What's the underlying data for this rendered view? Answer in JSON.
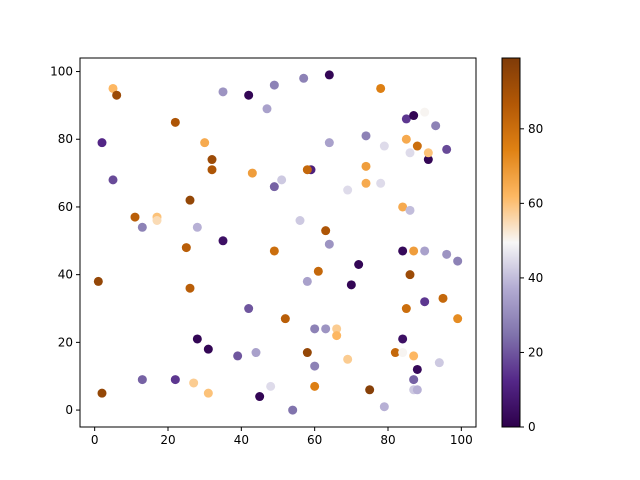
{
  "chart_data": {
    "type": "scatter",
    "title": "",
    "xlabel": "",
    "ylabel": "",
    "xlim": [
      -4,
      104
    ],
    "ylim": [
      -5,
      104
    ],
    "xticks": [
      "0",
      "20",
      "40",
      "60",
      "80",
      "100"
    ],
    "yticks": [
      "0",
      "20",
      "40",
      "60",
      "80",
      "100"
    ],
    "colormap": "PuOr_r",
    "colorbar": {
      "range": [
        0,
        99
      ],
      "ticks": [
        "0",
        "20",
        "40",
        "60",
        "80"
      ]
    },
    "grid": false,
    "points": [
      {
        "x": 5,
        "y": 95,
        "c": 62
      },
      {
        "x": 6,
        "y": 93,
        "c": 92
      },
      {
        "x": 35,
        "y": 94,
        "c": 32
      },
      {
        "x": 42,
        "y": 93,
        "c": 2
      },
      {
        "x": 49,
        "y": 96,
        "c": 28
      },
      {
        "x": 57,
        "y": 98,
        "c": 28
      },
      {
        "x": 64,
        "y": 99,
        "c": 2
      },
      {
        "x": 78,
        "y": 95,
        "c": 75
      },
      {
        "x": 47,
        "y": 89,
        "c": 35
      },
      {
        "x": 22,
        "y": 85,
        "c": 88
      },
      {
        "x": 30,
        "y": 79,
        "c": 65
      },
      {
        "x": 2,
        "y": 79,
        "c": 12
      },
      {
        "x": 32,
        "y": 74,
        "c": 92
      },
      {
        "x": 32,
        "y": 71,
        "c": 88
      },
      {
        "x": 43,
        "y": 70,
        "c": 68
      },
      {
        "x": 59,
        "y": 71,
        "c": 10
      },
      {
        "x": 58,
        "y": 71,
        "c": 82
      },
      {
        "x": 5,
        "y": 68,
        "c": 18
      },
      {
        "x": 49,
        "y": 66,
        "c": 22
      },
      {
        "x": 51,
        "y": 68,
        "c": 42
      },
      {
        "x": 64,
        "y": 79,
        "c": 35
      },
      {
        "x": 69,
        "y": 65,
        "c": 45
      },
      {
        "x": 74,
        "y": 81,
        "c": 28
      },
      {
        "x": 74,
        "y": 72,
        "c": 68
      },
      {
        "x": 74,
        "y": 67,
        "c": 65
      },
      {
        "x": 78,
        "y": 67,
        "c": 45
      },
      {
        "x": 79,
        "y": 78,
        "c": 45
      },
      {
        "x": 85,
        "y": 86,
        "c": 15
      },
      {
        "x": 87,
        "y": 87,
        "c": 2
      },
      {
        "x": 90,
        "y": 88,
        "c": 50
      },
      {
        "x": 93,
        "y": 84,
        "c": 28
      },
      {
        "x": 85,
        "y": 80,
        "c": 65
      },
      {
        "x": 86,
        "y": 76,
        "c": 45
      },
      {
        "x": 88,
        "y": 78,
        "c": 80
      },
      {
        "x": 91,
        "y": 74,
        "c": 2
      },
      {
        "x": 91,
        "y": 76,
        "c": 60
      },
      {
        "x": 96,
        "y": 77,
        "c": 18
      },
      {
        "x": 26,
        "y": 62,
        "c": 94
      },
      {
        "x": 11,
        "y": 57,
        "c": 85
      },
      {
        "x": 13,
        "y": 54,
        "c": 28
      },
      {
        "x": 17,
        "y": 57,
        "c": 60
      },
      {
        "x": 17,
        "y": 56,
        "c": 55
      },
      {
        "x": 28,
        "y": 54,
        "c": 38
      },
      {
        "x": 35,
        "y": 50,
        "c": 5
      },
      {
        "x": 25,
        "y": 48,
        "c": 85
      },
      {
        "x": 49,
        "y": 47,
        "c": 80
      },
      {
        "x": 56,
        "y": 56,
        "c": 42
      },
      {
        "x": 63,
        "y": 53,
        "c": 88
      },
      {
        "x": 64,
        "y": 49,
        "c": 32
      },
      {
        "x": 84,
        "y": 60,
        "c": 65
      },
      {
        "x": 86,
        "y": 59,
        "c": 40
      },
      {
        "x": 84,
        "y": 47,
        "c": 3
      },
      {
        "x": 87,
        "y": 47,
        "c": 68
      },
      {
        "x": 90,
        "y": 47,
        "c": 35
      },
      {
        "x": 96,
        "y": 46,
        "c": 32
      },
      {
        "x": 99,
        "y": 44,
        "c": 28
      },
      {
        "x": 1,
        "y": 38,
        "c": 94
      },
      {
        "x": 26,
        "y": 36,
        "c": 85
      },
      {
        "x": 58,
        "y": 38,
        "c": 35
      },
      {
        "x": 61,
        "y": 41,
        "c": 82
      },
      {
        "x": 72,
        "y": 43,
        "c": 2
      },
      {
        "x": 70,
        "y": 37,
        "c": 2
      },
      {
        "x": 86,
        "y": 40,
        "c": 92
      },
      {
        "x": 85,
        "y": 30,
        "c": 80
      },
      {
        "x": 90,
        "y": 32,
        "c": 15
      },
      {
        "x": 95,
        "y": 33,
        "c": 82
      },
      {
        "x": 99,
        "y": 27,
        "c": 72
      },
      {
        "x": 42,
        "y": 30,
        "c": 20
      },
      {
        "x": 52,
        "y": 27,
        "c": 85
      },
      {
        "x": 60,
        "y": 24,
        "c": 28
      },
      {
        "x": 63,
        "y": 24,
        "c": 32
      },
      {
        "x": 66,
        "y": 24,
        "c": 58
      },
      {
        "x": 66,
        "y": 22,
        "c": 62
      },
      {
        "x": 28,
        "y": 21,
        "c": 2
      },
      {
        "x": 31,
        "y": 18,
        "c": 2
      },
      {
        "x": 39,
        "y": 16,
        "c": 20
      },
      {
        "x": 44,
        "y": 17,
        "c": 35
      },
      {
        "x": 58,
        "y": 17,
        "c": 94
      },
      {
        "x": 60,
        "y": 13,
        "c": 28
      },
      {
        "x": 69,
        "y": 15,
        "c": 58
      },
      {
        "x": 82,
        "y": 17,
        "c": 82
      },
      {
        "x": 84,
        "y": 21,
        "c": 5
      },
      {
        "x": 84,
        "y": 17,
        "c": 50
      },
      {
        "x": 87,
        "y": 16,
        "c": 62
      },
      {
        "x": 88,
        "y": 12,
        "c": 3
      },
      {
        "x": 87,
        "y": 9,
        "c": 22
      },
      {
        "x": 94,
        "y": 14,
        "c": 42
      },
      {
        "x": 87,
        "y": 6,
        "c": 42
      },
      {
        "x": 88,
        "y": 6,
        "c": 38
      },
      {
        "x": 13,
        "y": 9,
        "c": 22
      },
      {
        "x": 22,
        "y": 9,
        "c": 15
      },
      {
        "x": 27,
        "y": 8,
        "c": 58
      },
      {
        "x": 31,
        "y": 5,
        "c": 60
      },
      {
        "x": 48,
        "y": 7,
        "c": 45
      },
      {
        "x": 60,
        "y": 7,
        "c": 75
      },
      {
        "x": 2,
        "y": 5,
        "c": 94
      },
      {
        "x": 45,
        "y": 4,
        "c": 2
      },
      {
        "x": 54,
        "y": 0,
        "c": 25
      },
      {
        "x": 75,
        "y": 6,
        "c": 97
      },
      {
        "x": 79,
        "y": 1,
        "c": 38
      }
    ]
  }
}
